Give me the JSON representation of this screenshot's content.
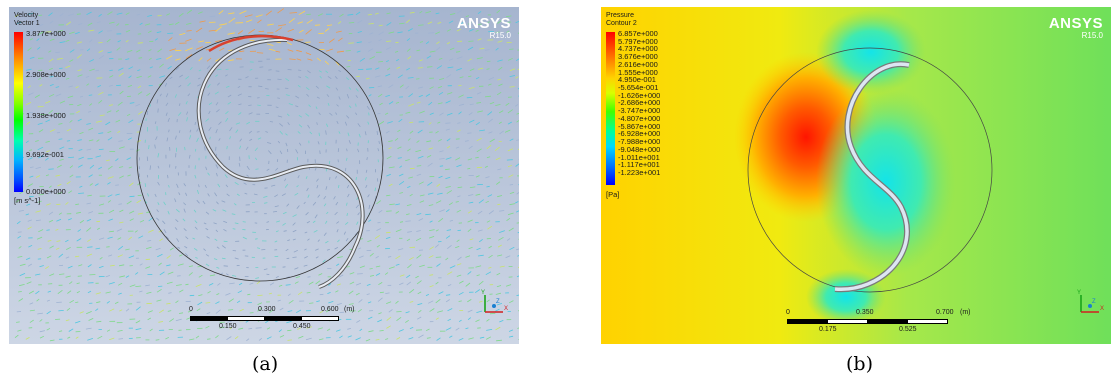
{
  "panel_a": {
    "legend_title": "Velocity",
    "legend_subtitle": "Vector 1",
    "brand": "ANSYS",
    "version": "R15.0",
    "colorbar_labels": [
      "3.877e+000",
      "2.908e+000",
      "1.938e+000",
      "9.692e-001",
      "0.000e+000"
    ],
    "units": "[m s^-1]",
    "scale_top": [
      "0",
      "0.300",
      "0.600",
      "(m)"
    ],
    "scale_bottom": [
      "0.150",
      "0.450"
    ],
    "caption": "(a)",
    "colors": {
      "background_top": "#a7b6d0",
      "background_bottom": "#c9d3e3"
    }
  },
  "panel_b": {
    "legend_title": "Pressure",
    "legend_subtitle": "Contour 2",
    "brand": "ANSYS",
    "version": "R15.0",
    "colorbar_labels": [
      "6.857e+000",
      "5.797e+000",
      "4.737e+000",
      "3.676e+000",
      "2.616e+000",
      "1.555e+000",
      "4.950e-001",
      "-5.654e-001",
      "-1.626e+000",
      "-2.686e+000",
      "-3.747e+000",
      "-4.807e+000",
      "-5.867e+000",
      "-6.928e+000",
      "-7.988e+000",
      "-9.048e+000",
      "-1.011e+001",
      "-1.117e+001",
      "-1.223e+001"
    ],
    "units": "[Pa]",
    "scale_top": [
      "0",
      "0.350",
      "0.700",
      "(m)"
    ],
    "scale_bottom": [
      "0.175",
      "0.525"
    ],
    "caption": "(b)",
    "colors": {
      "background": "#b6e23c",
      "high_pressure": "#ff2a00",
      "low_pressure": "#27e6d8"
    }
  }
}
